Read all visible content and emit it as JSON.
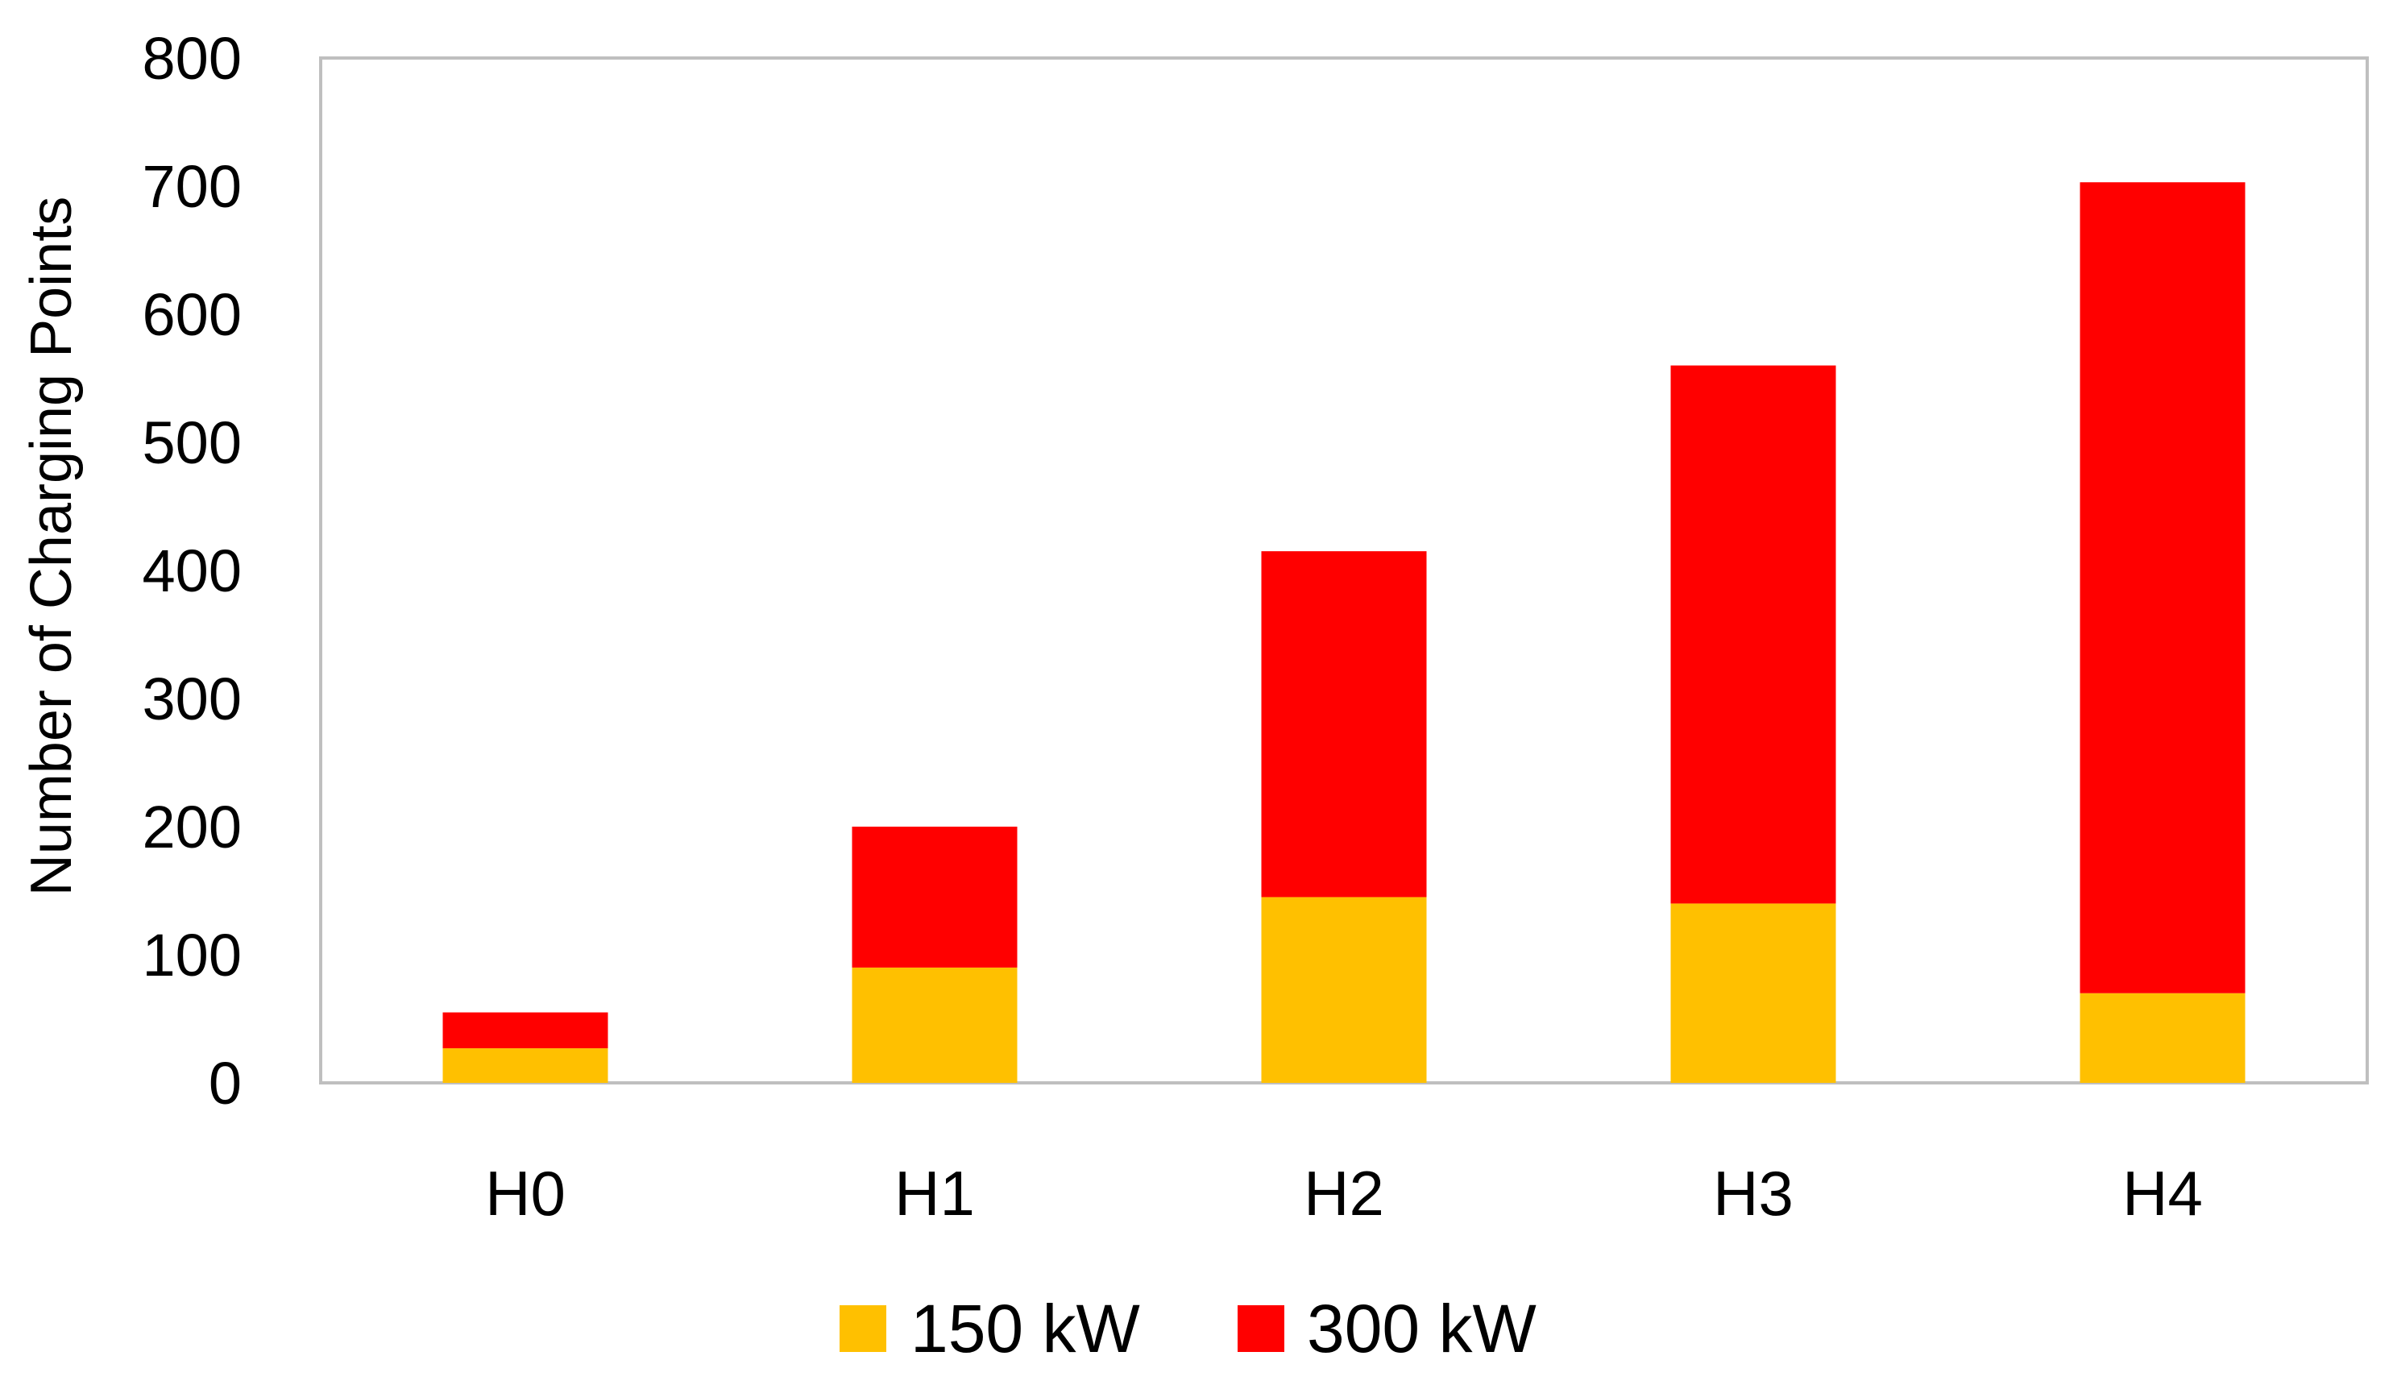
{
  "chart_data": {
    "type": "bar",
    "stacked": true,
    "categories": [
      "H0",
      "H1",
      "H2",
      "H3",
      "H4"
    ],
    "series": [
      {
        "name": "150 kW",
        "color": "#FFC000",
        "values": [
          27,
          90,
          145,
          140,
          70
        ]
      },
      {
        "name": "300 kW",
        "color": "#FF0000",
        "values": [
          28,
          110,
          270,
          420,
          633
        ]
      }
    ],
    "title": "",
    "xlabel": "",
    "ylabel": "Number of Charging Points",
    "ylim": [
      0,
      800
    ],
    "yticks": [
      "0",
      "100",
      "200",
      "300",
      "400",
      "500",
      "600",
      "700",
      "800"
    ],
    "grid": false,
    "legend_position": "bottom-center"
  }
}
